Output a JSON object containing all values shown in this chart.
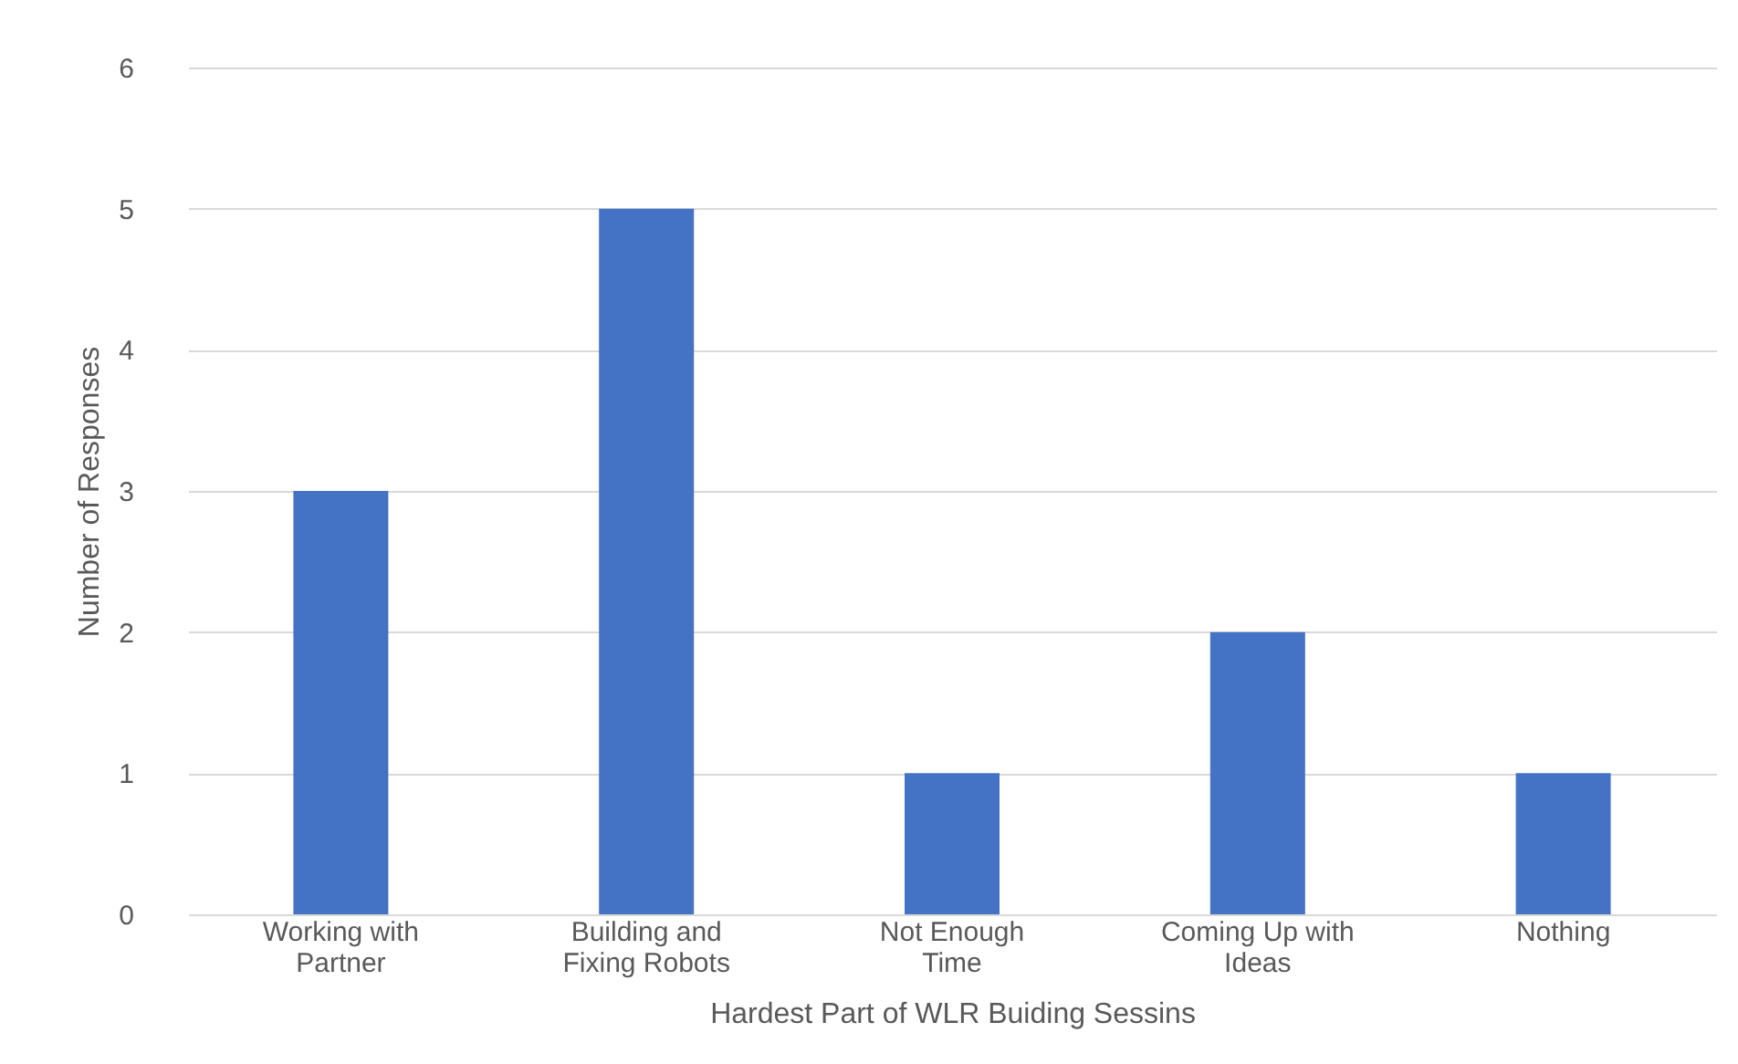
{
  "chart_data": {
    "type": "bar",
    "categories": [
      "Working with Partner",
      "Building and Fixing Robots",
      "Not Enough Time",
      "Coming Up with Ideas",
      "Nothing"
    ],
    "values": [
      3,
      5,
      1,
      2,
      1
    ],
    "color": "#4472c4",
    "xlabel": "Hardest Part of WLR Buiding Sessins",
    "ylabel": "Number  of Responses",
    "ylim": [
      0,
      6
    ],
    "yticks": [
      0,
      1,
      2,
      3,
      4,
      5,
      6
    ],
    "grid": "y"
  }
}
